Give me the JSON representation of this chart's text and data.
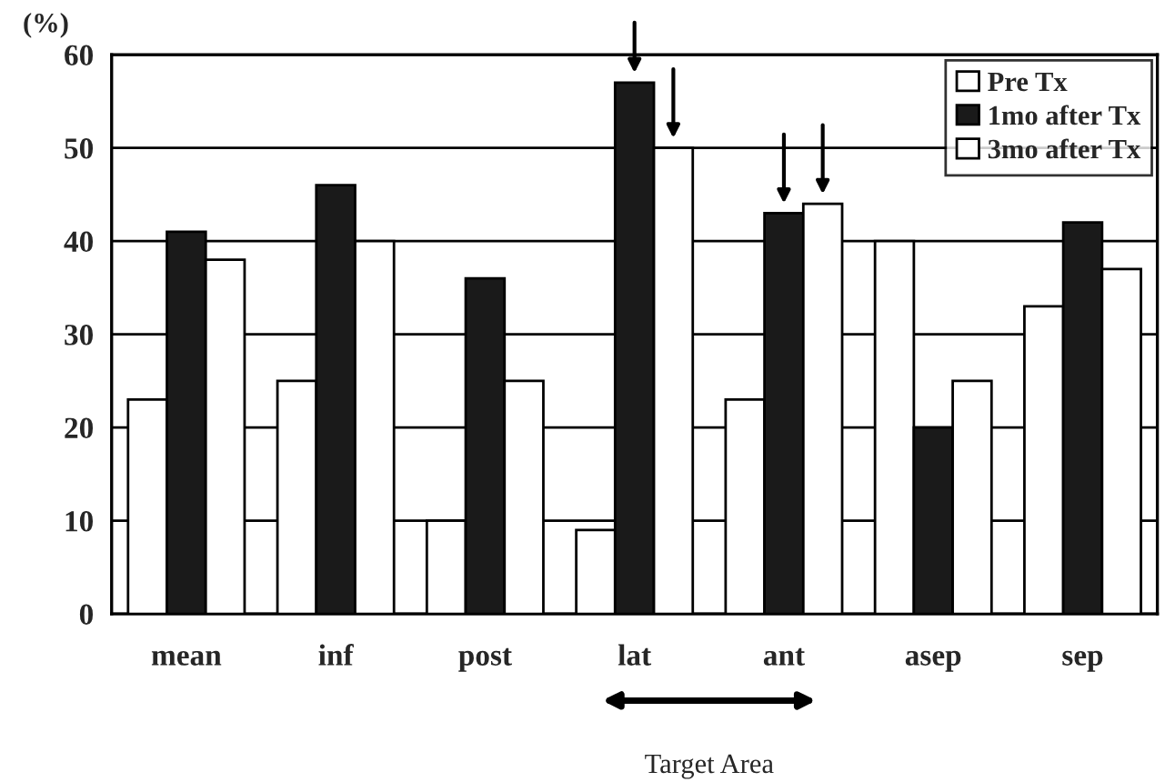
{
  "chart_data": {
    "type": "bar",
    "ylabel": "(%)",
    "categories": [
      "mean",
      "inf",
      "post",
      "lat",
      "ant",
      "asep",
      "sep"
    ],
    "series": [
      {
        "name": "Pre Tx",
        "color": "#ffffff",
        "values": [
          23,
          25,
          10,
          9,
          23,
          40,
          33
        ]
      },
      {
        "name": "1mo after Tx",
        "color": "#1a1a1a",
        "values": [
          41,
          46,
          36,
          57,
          43,
          20,
          42
        ]
      },
      {
        "name": "3mo after Tx",
        "color": "#ffffff",
        "values": [
          38,
          40,
          25,
          50,
          44,
          25,
          37
        ]
      }
    ],
    "ylim": [
      0,
      60
    ],
    "yticks": [
      0,
      10,
      20,
      30,
      40,
      50,
      60
    ],
    "grid": "y",
    "legend": "top right",
    "annotations": [
      "Target Area"
    ]
  }
}
